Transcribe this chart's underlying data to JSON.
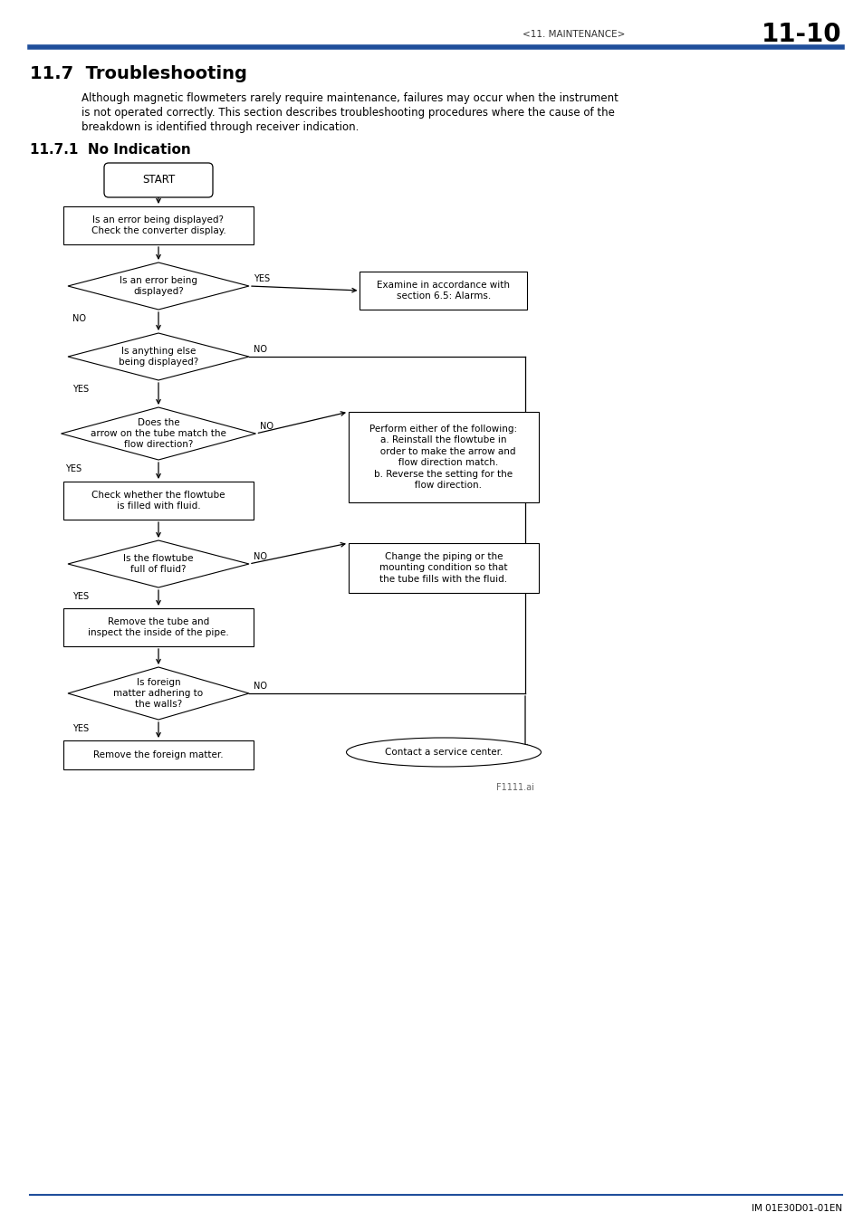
{
  "title_section": "11.7  Troubleshooting",
  "header_right": "<11. MAINTENANCE>",
  "header_page": "11-10",
  "subtitle": "11.7.1  No Indication",
  "body_text_1": "Although magnetic flowmeters rarely require maintenance, failures may occur when the instrument",
  "body_text_2": "is not operated correctly. This section describes troubleshooting procedures where the cause of the",
  "body_text_3": "breakdown is identified through receiver indication.",
  "footer_text": "IM 01E30D01-01EN",
  "fig_label": "F1111.ai",
  "bg_color": "#ffffff",
  "header_line_color": "#1f4e9b",
  "footer_line_color": "#1f4e9b"
}
